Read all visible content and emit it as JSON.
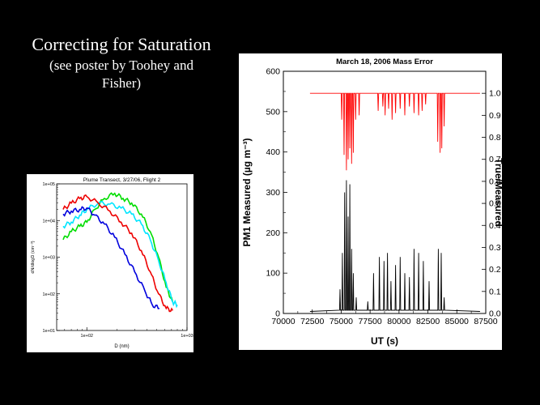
{
  "slide": {
    "title": "Correcting for Saturation",
    "subtitle_line1": "(see poster by Toohey and",
    "subtitle_line2": "Fisher)"
  },
  "chart_data": [
    {
      "type": "line",
      "title": "Plume Transect, 3/27/06, Flight 2",
      "xlabel": "D (nm)",
      "ylabel": "dN/dlogD (cm⁻³)",
      "xscale": "log",
      "yscale": "log",
      "xlim": [
        50,
        1000
      ],
      "ylim": [
        10,
        100000
      ],
      "x_ticks": [
        {
          "value": 100,
          "label": "1e+02"
        },
        {
          "value": 1000,
          "label": "1e+03"
        }
      ],
      "y_ticks": [
        {
          "value": 10,
          "label": "1e+01"
        },
        {
          "value": 100,
          "label": "1e+02"
        },
        {
          "value": 1000,
          "label": "1e+03"
        },
        {
          "value": 10000,
          "label": "1e+04"
        },
        {
          "value": 100000,
          "label": "1e+05"
        }
      ],
      "grid": false,
      "legend": "none",
      "series": [
        {
          "color": "#00dd00",
          "x": [
            58,
            70,
            85,
            100,
            120,
            150,
            190,
            230,
            280,
            350,
            430,
            520,
            620,
            720
          ],
          "y": [
            3000,
            5000,
            7000,
            9000,
            20000,
            40000,
            55000,
            40000,
            30000,
            15000,
            5000,
            1000,
            150,
            60
          ]
        },
        {
          "color": "#00e5ff",
          "x": [
            58,
            70,
            85,
            100,
            130,
            170,
            220,
            280,
            350,
            430,
            520,
            620,
            720,
            800
          ],
          "y": [
            7000,
            9000,
            14000,
            20000,
            30000,
            28000,
            22000,
            15000,
            8000,
            3000,
            800,
            200,
            60,
            50
          ]
        },
        {
          "color": "#ee0000",
          "x": [
            58,
            70,
            85,
            100,
            130,
            170,
            220,
            280,
            350,
            430,
            520,
            620,
            720
          ],
          "y": [
            20000,
            30000,
            40000,
            45000,
            30000,
            18000,
            9000,
            4500,
            1500,
            400,
            100,
            40,
            35
          ]
        },
        {
          "color": "#0000dd",
          "x": [
            58,
            70,
            85,
            100,
            120,
            150,
            190,
            240,
            300,
            380,
            450,
            530
          ],
          "y": [
            15000,
            18000,
            20000,
            22000,
            14000,
            8000,
            3500,
            1200,
            400,
            120,
            50,
            40
          ]
        }
      ]
    },
    {
      "type": "line",
      "title": "March 18, 2006 Mass Error",
      "xlabel": "UT (s)",
      "ylabel": "PM1 Measured (µg m⁻³)",
      "y2label": "True/Measured",
      "xlim": [
        70000,
        87500
      ],
      "ylim": [
        0,
        600
      ],
      "y2lim": [
        0,
        1.1
      ],
      "x_ticks": [
        70000,
        72500,
        75000,
        77500,
        80000,
        82500,
        85000,
        87500
      ],
      "y_ticks": [
        0,
        100,
        200,
        300,
        400,
        500,
        600
      ],
      "y2_ticks": [
        "0.0",
        "0.1",
        "0.2",
        "0.3",
        "0.4",
        "0.5",
        "0.6",
        "0.7",
        "0.8",
        "0.9",
        "1.0"
      ],
      "grid": false,
      "legend": "none",
      "series": [
        {
          "axis": "right",
          "color": "#ff0000",
          "baseline": 1.0,
          "x_range": [
            72300,
            87000
          ],
          "dips": [
            [
              75050,
              0.88
            ],
            [
              75250,
              0.72
            ],
            [
              75450,
              0.65
            ],
            [
              75600,
              0.7
            ],
            [
              75750,
              0.75
            ],
            [
              75900,
              0.68
            ],
            [
              76050,
              0.73
            ],
            [
              76250,
              0.88
            ],
            [
              76550,
              0.9
            ],
            [
              78200,
              0.92
            ],
            [
              78600,
              0.94
            ],
            [
              78800,
              0.9
            ],
            [
              79100,
              0.93
            ],
            [
              79400,
              0.88
            ],
            [
              79700,
              0.91
            ],
            [
              80100,
              0.93
            ],
            [
              80500,
              0.9
            ],
            [
              80900,
              0.94
            ],
            [
              81300,
              0.91
            ],
            [
              81700,
              0.9
            ],
            [
              82000,
              0.92
            ],
            [
              82300,
              0.95
            ],
            [
              83350,
              0.78
            ],
            [
              83550,
              0.73
            ],
            [
              83700,
              0.75
            ],
            [
              83900,
              0.85
            ]
          ]
        },
        {
          "axis": "left",
          "color": "#000000",
          "x_range": [
            72300,
            87000
          ],
          "spikes": [
            [
              74900,
              60
            ],
            [
              75100,
              150
            ],
            [
              75300,
              300
            ],
            [
              75450,
              330
            ],
            [
              75600,
              240
            ],
            [
              75750,
              320
            ],
            [
              75900,
              160
            ],
            [
              76050,
              100
            ],
            [
              76300,
              40
            ],
            [
              77300,
              30
            ],
            [
              77800,
              100
            ],
            [
              78300,
              140
            ],
            [
              78700,
              130
            ],
            [
              79000,
              150
            ],
            [
              79300,
              80
            ],
            [
              79700,
              120
            ],
            [
              80100,
              140
            ],
            [
              80500,
              100
            ],
            [
              80900,
              90
            ],
            [
              81300,
              160
            ],
            [
              81700,
              150
            ],
            [
              82100,
              130
            ],
            [
              82600,
              80
            ],
            [
              83400,
              160
            ],
            [
              83650,
              150
            ],
            [
              83900,
              40
            ]
          ]
        }
      ]
    }
  ]
}
